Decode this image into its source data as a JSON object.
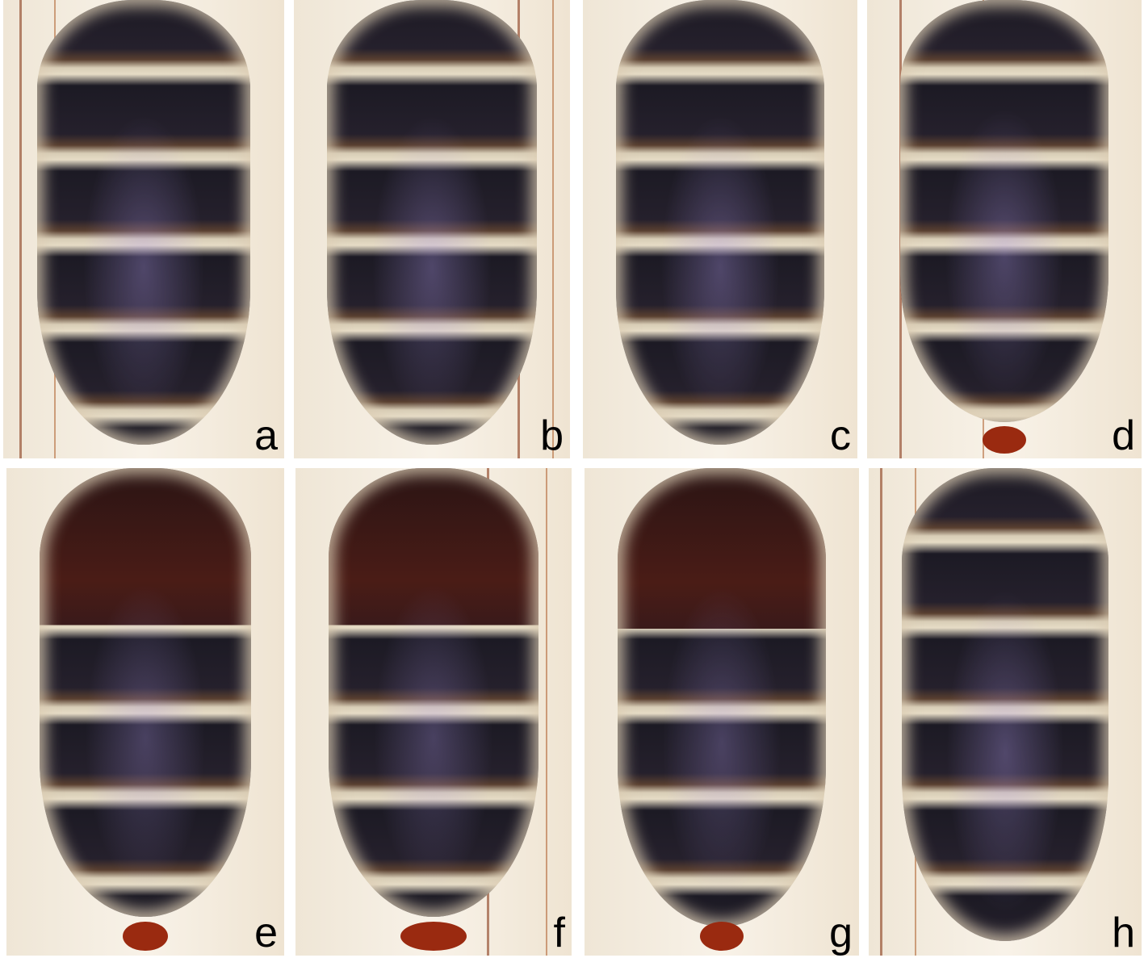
{
  "figure": {
    "panels": [
      {
        "label": "a",
        "specimen_tone": "black"
      },
      {
        "label": "b",
        "specimen_tone": "black"
      },
      {
        "label": "c",
        "specimen_tone": "black"
      },
      {
        "label": "d",
        "specimen_tone": "black-red-tip"
      },
      {
        "label": "e",
        "specimen_tone": "brown-red-tip"
      },
      {
        "label": "f",
        "specimen_tone": "brown-red-tip"
      },
      {
        "label": "g",
        "specimen_tone": "brown-red-tip"
      },
      {
        "label": "h",
        "specimen_tone": "black"
      }
    ]
  }
}
